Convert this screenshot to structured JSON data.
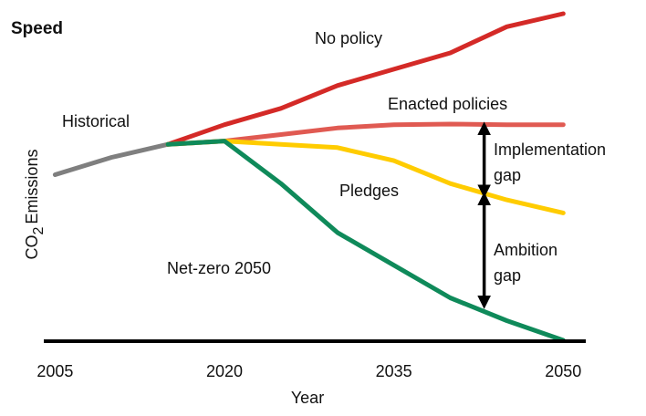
{
  "chart_data": {
    "type": "line",
    "title": "Speed",
    "xlabel": "Year",
    "ylabel": "CO₂ Emissions",
    "ylabel_parts": {
      "base": "CO",
      "subscript": "2",
      "rest": "Emissions"
    },
    "x_ticks": [
      2005,
      2020,
      2035,
      2050
    ],
    "xlim": [
      2004,
      2052
    ],
    "ylim": [
      0,
      10
    ],
    "grid": false,
    "series": [
      {
        "name": "Historical",
        "color": "#7f7f7f",
        "x": [
          2005,
          2010,
          2015
        ],
        "y": [
          5.07,
          5.6,
          6.0
        ]
      },
      {
        "name": "No policy",
        "color": "#d42a27",
        "x": [
          2015,
          2020,
          2025,
          2030,
          2035,
          2040,
          2045,
          2050
        ],
        "y": [
          6.0,
          6.6,
          7.1,
          7.8,
          8.3,
          8.8,
          9.6,
          10.0
        ]
      },
      {
        "name": "Enacted policies",
        "color": "#e05a52",
        "x": [
          2015,
          2020,
          2025,
          2030,
          2035,
          2040,
          2045,
          2050
        ],
        "y": [
          6.0,
          6.1,
          6.3,
          6.5,
          6.6,
          6.62,
          6.6,
          6.6
        ]
      },
      {
        "name": "Pledges",
        "color": "#ffcc00",
        "x": [
          2015,
          2020,
          2025,
          2030,
          2035,
          2040,
          2045,
          2050
        ],
        "y": [
          6.0,
          6.1,
          6.0,
          5.9,
          5.5,
          4.8,
          4.3,
          3.9
        ]
      },
      {
        "name": "Net-zero 2050",
        "color": "#0f8a5a",
        "x": [
          2015,
          2020,
          2025,
          2030,
          2035,
          2040,
          2045,
          2050
        ],
        "y": [
          6.0,
          6.1,
          4.8,
          3.3,
          2.3,
          1.3,
          0.6,
          0.0
        ]
      }
    ],
    "annotations": [
      {
        "text": "Implementation gap",
        "lines": [
          "Implementation",
          "gap"
        ],
        "year": 2043,
        "from": 6.6,
        "to": 4.45
      },
      {
        "text": "Ambition gap",
        "lines": [
          "Ambition",
          "gap"
        ],
        "year": 2043,
        "from": 4.45,
        "to": 1.05
      }
    ]
  }
}
